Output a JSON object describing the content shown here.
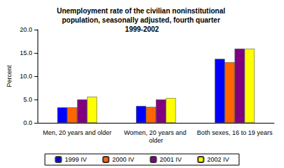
{
  "chart_data": {
    "type": "bar",
    "title": "Unemployment rate of the civilian noninstitutional population, seasonally adjusted, fourth quarter 1999-2002",
    "y_label": "Percent",
    "categories": [
      "Men, 20 years and older",
      "Women, 20 years and older",
      "Both sexes, 16 to 19 years"
    ],
    "series": [
      {
        "name": "1999 IV",
        "color": "#0000ff",
        "values": [
          3.3,
          3.6,
          13.7
        ]
      },
      {
        "name": "2000 IV",
        "color": "#ff6600",
        "values": [
          3.3,
          3.4,
          13.0
        ]
      },
      {
        "name": "2001 IV",
        "color": "#800080",
        "values": [
          5.0,
          5.0,
          15.9
        ]
      },
      {
        "name": "2002 IV",
        "color": "#ffff00",
        "values": [
          5.6,
          5.3,
          15.9
        ]
      }
    ],
    "ylim": [
      0,
      20
    ],
    "yticks": [
      {
        "value": 0,
        "label": "0.0"
      },
      {
        "value": 5,
        "label": "5.0"
      },
      {
        "value": 10,
        "label": "10.0"
      },
      {
        "value": 15,
        "label": "15.0"
      },
      {
        "value": 20,
        "label": "20.0"
      }
    ],
    "grid": false,
    "legend": "bottom"
  }
}
